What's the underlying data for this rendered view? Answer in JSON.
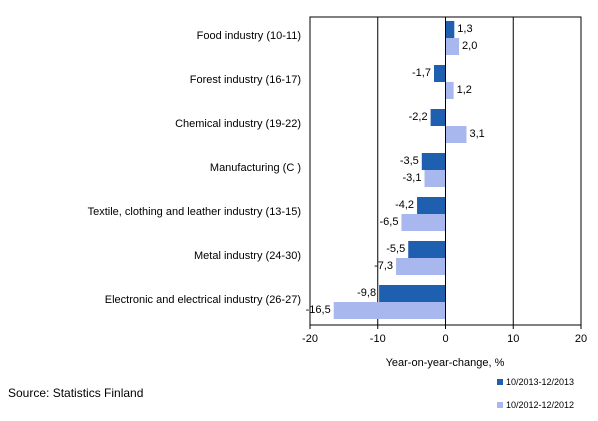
{
  "source_note": "Source: Statistics Finland",
  "chart_data": {
    "type": "bar",
    "orientation": "horizontal",
    "categories": [
      "Food industry (10-11)",
      "Forest industry (16-17)",
      "Chemical industry (19-22)",
      "Manufacturing (C )",
      "Textile, clothing and leather industry (13-15)",
      "Metal industry (24-30)",
      "Electronic and electrical industry (26-27)"
    ],
    "series": [
      {
        "name": "10/2013-12/2013",
        "color": "#1f5fb0",
        "values": [
          1.3,
          -1.7,
          -2.2,
          -3.5,
          -4.2,
          -5.5,
          -9.8
        ],
        "labels": [
          "1,3",
          "-1,7",
          "-2,2",
          "-3,5",
          "-4,2",
          "-5,5",
          "-9,8"
        ]
      },
      {
        "name": "10/2012-12/2012",
        "color": "#a8b8ee",
        "values": [
          2.0,
          1.2,
          3.1,
          -3.1,
          -6.5,
          -7.3,
          -16.5
        ],
        "labels": [
          "2,0",
          "1,2",
          "3,1",
          "-3,1",
          "-6,5",
          "-7,3",
          "-16,5"
        ]
      }
    ],
    "xlabel": "Year-on-year-change, %",
    "xlim": [
      -20,
      20
    ],
    "xticks": [
      -20,
      -10,
      0,
      10,
      20
    ],
    "xtick_labels": [
      "-20",
      "-10",
      "0",
      "10",
      "20"
    ],
    "grid_lines_at": [
      -10,
      10
    ],
    "legend_position": "bottom-right"
  }
}
